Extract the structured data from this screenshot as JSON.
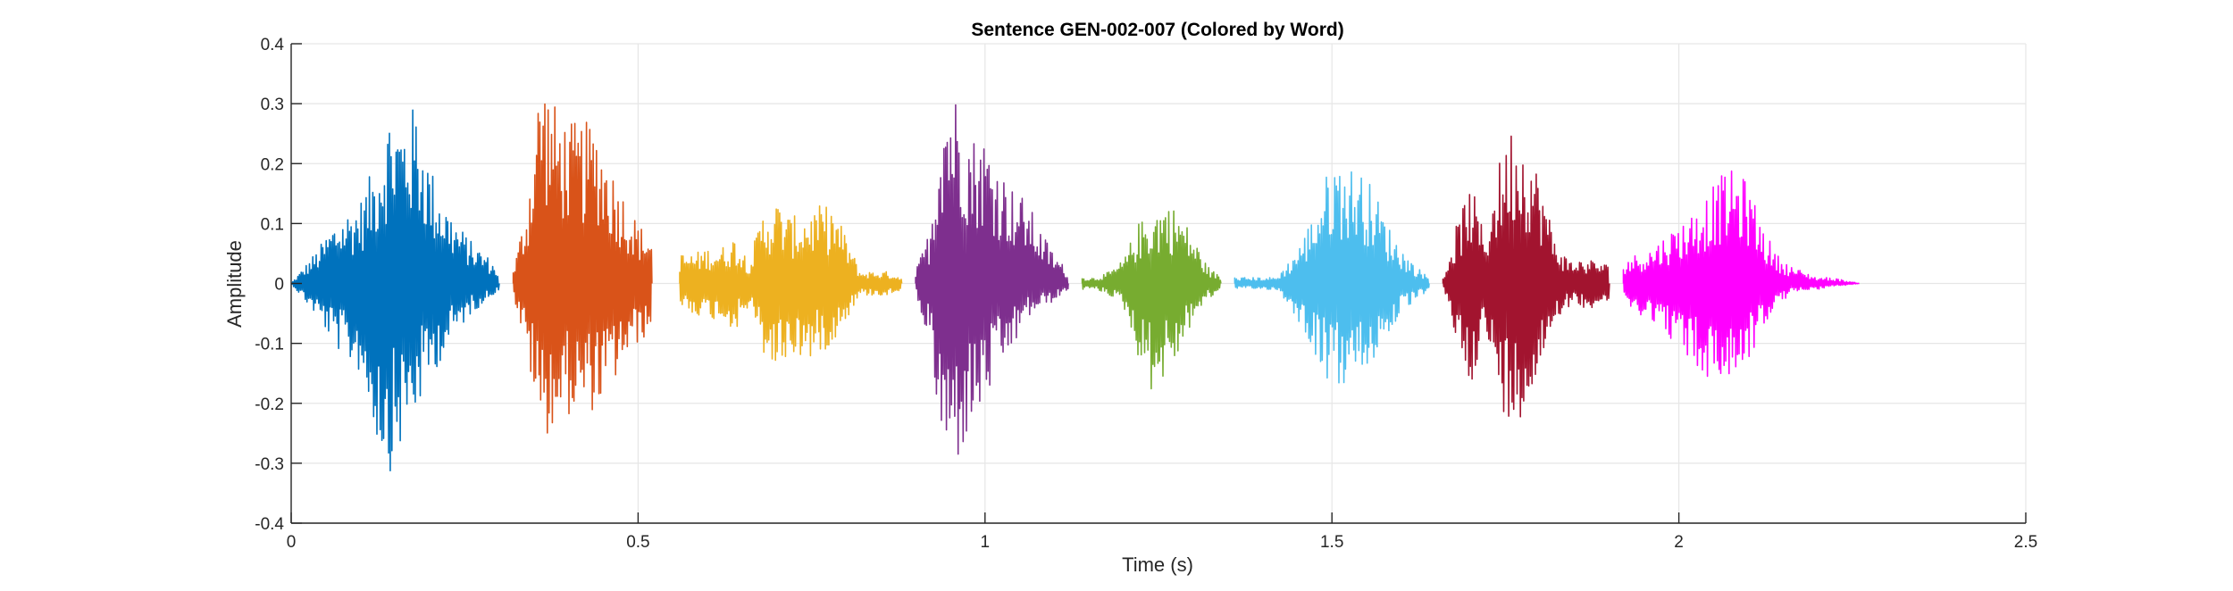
{
  "chart_data": {
    "type": "line",
    "title": "Sentence GEN-002-007 (Colored by Word)",
    "xlabel": "Time (s)",
    "ylabel": "Amplitude",
    "xlim": [
      0,
      2.5
    ],
    "ylim": [
      -0.4,
      0.4
    ],
    "x_ticks": [
      0,
      0.5,
      1,
      1.5,
      2,
      2.5
    ],
    "x_tick_labels": [
      "0",
      "0.5",
      "1",
      "1.5",
      "2",
      "2.5"
    ],
    "y_ticks": [
      0.4,
      0.3,
      0.2,
      0.1,
      0,
      -0.1,
      -0.2,
      -0.3,
      -0.4
    ],
    "y_tick_labels": [
      "0.4",
      "0.3",
      "0.2",
      "0.1",
      "0",
      "-0.1",
      "-0.2",
      "-0.3",
      "-0.4"
    ],
    "grid": true,
    "series": [
      {
        "color": "#0072BD",
        "x": [
          0.0,
          0.02,
          0.04,
          0.06,
          0.08,
          0.1,
          0.12,
          0.14,
          0.16,
          0.18,
          0.2,
          0.22,
          0.24,
          0.26,
          0.28,
          0.3
        ],
        "upper": [
          0.0,
          0.03,
          0.06,
          0.1,
          0.12,
          0.14,
          0.2,
          0.29,
          0.28,
          0.3,
          0.2,
          0.14,
          0.1,
          0.07,
          0.05,
          0.02
        ],
        "lower": [
          0.0,
          -0.03,
          -0.06,
          -0.1,
          -0.13,
          -0.15,
          -0.25,
          -0.32,
          -0.27,
          -0.22,
          -0.16,
          -0.12,
          -0.08,
          -0.05,
          -0.03,
          -0.01
        ]
      },
      {
        "color": "#D95319",
        "x": [
          0.32,
          0.34,
          0.36,
          0.38,
          0.4,
          0.42,
          0.44,
          0.46,
          0.48,
          0.5,
          0.52
        ],
        "upper": [
          0.02,
          0.14,
          0.37,
          0.3,
          0.27,
          0.27,
          0.27,
          0.2,
          0.15,
          0.1,
          0.08
        ],
        "lower": [
          -0.02,
          -0.12,
          -0.26,
          -0.24,
          -0.22,
          -0.22,
          -0.21,
          -0.18,
          -0.13,
          -0.1,
          -0.08
        ]
      },
      {
        "color": "#EDB120",
        "x": [
          0.56,
          0.58,
          0.6,
          0.62,
          0.64,
          0.66,
          0.68,
          0.7,
          0.72,
          0.74,
          0.76,
          0.78,
          0.8,
          0.82,
          0.84,
          0.86,
          0.88
        ],
        "upper": [
          0.05,
          0.05,
          0.06,
          0.06,
          0.08,
          0.04,
          0.12,
          0.14,
          0.11,
          0.12,
          0.13,
          0.13,
          0.08,
          0.02,
          0.02,
          0.02,
          0.01
        ],
        "lower": [
          -0.04,
          -0.05,
          -0.06,
          -0.06,
          -0.08,
          -0.04,
          -0.12,
          -0.15,
          -0.12,
          -0.13,
          -0.12,
          -0.1,
          -0.06,
          -0.02,
          -0.02,
          -0.02,
          -0.01
        ]
      },
      {
        "color": "#7E2F8E",
        "x": [
          0.9,
          0.92,
          0.94,
          0.96,
          0.98,
          1.0,
          1.02,
          1.04,
          1.06,
          1.08,
          1.1,
          1.12
        ],
        "upper": [
          0.02,
          0.09,
          0.34,
          0.32,
          0.25,
          0.25,
          0.2,
          0.16,
          0.14,
          0.09,
          0.05,
          0.02
        ],
        "lower": [
          -0.02,
          -0.1,
          -0.31,
          -0.3,
          -0.25,
          -0.2,
          -0.15,
          -0.11,
          -0.06,
          -0.04,
          -0.03,
          -0.01
        ]
      },
      {
        "color": "#77AC30",
        "x": [
          1.14,
          1.16,
          1.18,
          1.2,
          1.22,
          1.24,
          1.26,
          1.28,
          1.3,
          1.32,
          1.34
        ],
        "upper": [
          0.01,
          0.01,
          0.02,
          0.04,
          0.1,
          0.12,
          0.14,
          0.12,
          0.08,
          0.03,
          0.01
        ],
        "lower": [
          -0.01,
          -0.01,
          -0.02,
          -0.04,
          -0.12,
          -0.18,
          -0.16,
          -0.12,
          -0.06,
          -0.03,
          -0.01
        ]
      },
      {
        "color": "#4DBEEE",
        "x": [
          1.36,
          1.38,
          1.4,
          1.42,
          1.44,
          1.46,
          1.48,
          1.5,
          1.52,
          1.54,
          1.56,
          1.58,
          1.6,
          1.62,
          1.64
        ],
        "upper": [
          0.01,
          0.01,
          0.01,
          0.01,
          0.04,
          0.08,
          0.14,
          0.21,
          0.2,
          0.19,
          0.16,
          0.1,
          0.06,
          0.03,
          0.01
        ],
        "lower": [
          -0.01,
          -0.01,
          -0.01,
          -0.01,
          -0.04,
          -0.08,
          -0.13,
          -0.18,
          -0.17,
          -0.16,
          -0.13,
          -0.09,
          -0.05,
          -0.03,
          -0.01
        ]
      },
      {
        "color": "#A2142F",
        "x": [
          1.66,
          1.68,
          1.7,
          1.72,
          1.74,
          1.76,
          1.78,
          1.8,
          1.82,
          1.84,
          1.86,
          1.88,
          1.9
        ],
        "upper": [
          0.01,
          0.1,
          0.17,
          0.08,
          0.2,
          0.27,
          0.24,
          0.18,
          0.08,
          0.04,
          0.04,
          0.04,
          0.03
        ],
        "lower": [
          -0.01,
          -0.1,
          -0.17,
          -0.08,
          -0.2,
          -0.24,
          -0.21,
          -0.15,
          -0.06,
          -0.04,
          -0.04,
          -0.04,
          -0.03
        ]
      },
      {
        "color": "#FF00FF",
        "x": [
          1.92,
          1.94,
          1.96,
          1.98,
          2.0,
          2.02,
          2.04,
          2.06,
          2.08,
          2.1,
          2.12,
          2.14,
          2.16,
          2.18,
          2.2,
          2.22,
          2.24,
          2.26
        ],
        "upper": [
          0.04,
          0.05,
          0.06,
          0.08,
          0.1,
          0.12,
          0.15,
          0.18,
          0.19,
          0.17,
          0.1,
          0.05,
          0.03,
          0.02,
          0.01,
          0.01,
          0.005,
          0.0
        ],
        "lower": [
          -0.04,
          -0.05,
          -0.06,
          -0.08,
          -0.11,
          -0.14,
          -0.16,
          -0.17,
          -0.16,
          -0.13,
          -0.08,
          -0.04,
          -0.02,
          -0.01,
          -0.01,
          -0.005,
          -0.003,
          0.0
        ]
      }
    ]
  }
}
